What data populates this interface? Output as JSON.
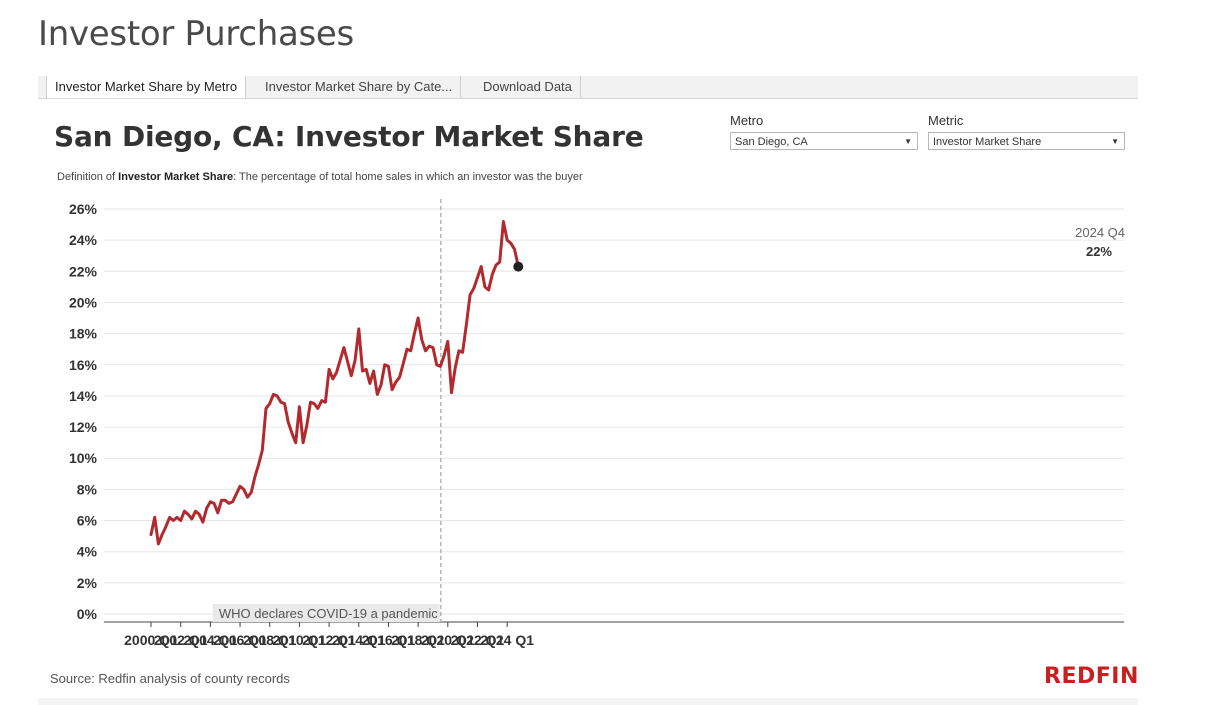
{
  "page": {
    "title": "Investor Purchases"
  },
  "tabs": [
    {
      "label": "Investor Market Share by Metro",
      "active": true
    },
    {
      "label": "Investor Market Share by Cate...",
      "active": false
    },
    {
      "label": "Download Data",
      "active": false
    }
  ],
  "filters": {
    "metro_label": "Metro",
    "metro_value": "San Diego, CA",
    "metric_label": "Metric",
    "metric_value": "Investor Market Share"
  },
  "definition": {
    "prefix": "Definition of ",
    "term": "Investor Market Share",
    "text": ": The percentage of total home sales in which an investor was the buyer"
  },
  "footer": {
    "source": "Source: Redfin analysis of county records",
    "logo": "REDFIN"
  },
  "colors": {
    "line": "#b22a2e",
    "grid": "#e6e6e6",
    "annotation_bg": "#e9e9e9",
    "logo": "#c82021"
  },
  "chart_data": {
    "type": "line",
    "title": "San Diego, CA: Investor Market Share",
    "xlabel": "",
    "ylabel": "",
    "ylim": [
      0,
      26
    ],
    "y_ticks": [
      "0%",
      "2%",
      "4%",
      "6%",
      "8%",
      "10%",
      "12%",
      "14%",
      "16%",
      "18%",
      "20%",
      "22%",
      "24%",
      "26%"
    ],
    "x_ticks": [
      "2000 Q1",
      "2002 Q1",
      "2004 Q1",
      "2006 Q1",
      "2008 Q1",
      "2010 Q1",
      "2012 Q1",
      "2014 Q1",
      "2016 Q1",
      "2018 Q1",
      "2020 Q1",
      "2022 Q1",
      "2024 Q1"
    ],
    "grid": true,
    "series": [
      {
        "start": "2000 Q1",
        "frequency": "quarterly",
        "values": [
          5.1,
          6.2,
          4.5,
          5.1,
          5.6,
          6.2,
          6.0,
          6.2,
          6.0,
          6.6,
          6.4,
          6.1,
          6.6,
          6.4,
          5.9,
          6.8,
          7.2,
          7.1,
          6.5,
          7.3,
          7.3,
          7.1,
          7.2,
          7.7,
          8.2,
          8.0,
          7.5,
          7.8,
          8.8,
          9.6,
          10.5,
          13.2,
          13.5,
          14.1,
          14.0,
          13.6,
          13.5,
          12.3,
          11.6,
          11.0,
          13.3,
          11.0,
          12.1,
          13.6,
          13.5,
          13.2,
          13.7,
          13.6,
          15.7,
          15.1,
          15.5,
          16.3,
          17.1,
          16.2,
          15.3,
          16.3,
          18.3,
          15.6,
          15.7,
          14.8,
          15.6,
          14.1,
          14.7,
          16.0,
          15.9,
          14.4,
          14.9,
          15.2,
          16.1,
          17.0,
          16.9,
          18.0,
          19.0,
          17.6,
          16.9,
          17.2,
          17.1,
          16.0,
          15.9,
          16.6,
          17.5,
          14.2,
          15.8,
          16.9,
          16.8,
          18.6,
          20.5,
          20.9,
          21.6,
          22.3,
          21.0,
          20.8,
          21.8,
          22.4,
          22.6,
          25.2,
          24.0,
          23.8,
          23.4,
          22.3
        ]
      }
    ],
    "annotations": [
      {
        "x": "2020 Q1",
        "text": "WHO declares COVID-19 a pandemic"
      }
    ],
    "highlight": {
      "period": "2024 Q4",
      "value_label": "22%"
    }
  }
}
